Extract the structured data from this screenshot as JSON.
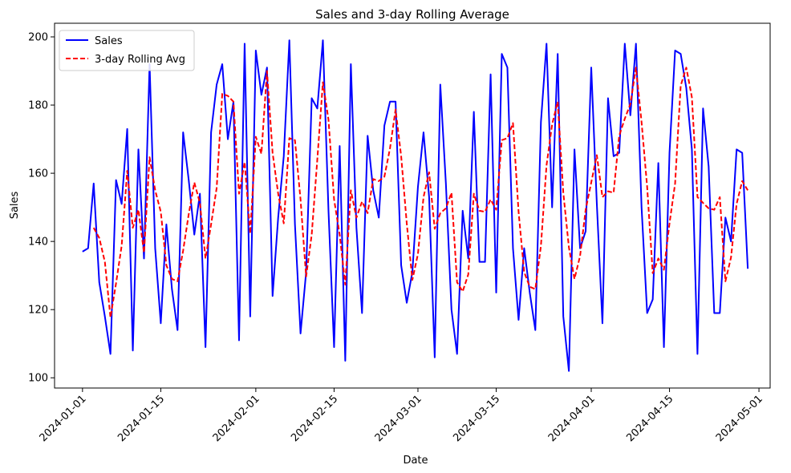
{
  "chart_data": {
    "type": "line",
    "title": "Sales and 3-day Rolling Average",
    "xlabel": "Date",
    "ylabel": "Sales",
    "x_start": "2024-01-01",
    "xlim": [
      "2023-12-27",
      "2024-05-03"
    ],
    "ylim": [
      97,
      204
    ],
    "grid": false,
    "legend_position": "top-left",
    "x_ticks": [
      "2024-01-01",
      "2024-01-15",
      "2024-02-01",
      "2024-02-15",
      "2024-03-01",
      "2024-03-15",
      "2024-04-01",
      "2024-04-15",
      "2024-05-01"
    ],
    "y_ticks": [
      100,
      120,
      140,
      160,
      180,
      200
    ],
    "series": [
      {
        "name": "Sales",
        "color": "#0000ff",
        "style": "solid",
        "values": [
          137,
          138,
          157,
          128,
          118,
          107,
          158,
          151,
          173,
          108,
          167,
          135,
          192,
          138,
          116,
          145,
          126,
          114,
          172,
          158,
          142,
          154,
          109,
          172,
          186,
          192,
          170,
          181,
          111,
          198,
          118,
          196,
          183,
          191,
          124,
          147,
          165,
          199,
          145,
          113,
          131,
          182,
          179,
          199,
          149,
          109,
          168,
          105,
          192,
          144,
          119,
          171,
          155,
          147,
          174,
          181,
          181,
          133,
          122,
          131,
          156,
          172,
          153,
          106,
          186,
          157,
          120,
          107,
          149,
          135,
          178,
          134,
          134,
          189,
          125,
          195,
          191,
          138,
          117,
          138,
          125,
          114,
          175,
          198,
          150,
          195,
          118,
          102,
          167,
          138,
          143,
          191,
          151,
          116,
          182,
          165,
          166,
          198,
          177,
          198,
          150,
          119,
          123,
          163,
          109,
          166,
          196,
          195,
          185,
          167,
          107,
          179,
          162,
          119,
          119,
          147,
          140,
          167,
          166,
          132
        ]
      },
      {
        "name": "3-day Rolling Avg",
        "color": "#ff0000",
        "style": "dashed",
        "start_date": "2024-01-03",
        "values": [
          144,
          141,
          134,
          117.7,
          127.7,
          138.7,
          160.7,
          144,
          149.3,
          136.7,
          164.7,
          155,
          148.7,
          133,
          129,
          128.3,
          137.3,
          148,
          157.3,
          151.3,
          135,
          145,
          155.7,
          183.3,
          182.7,
          181,
          154,
          163.3,
          142.3,
          170.7,
          165.7,
          190,
          166,
          154,
          145.3,
          170.3,
          169.7,
          152.3,
          129.7,
          142,
          164,
          186.7,
          175.7,
          152.3,
          142,
          127.3,
          155,
          147,
          151.7,
          148.3,
          158.3,
          157.7,
          159,
          167.3,
          178.7,
          165,
          145.3,
          128.7,
          136.3,
          153,
          160.3,
          143.7,
          148.3,
          149.7,
          154.3,
          128,
          125.3,
          130.3,
          154,
          149,
          148.7,
          152.3,
          149.3,
          169.7,
          170.3,
          174.7,
          148.7,
          131,
          126.7,
          126,
          138.7,
          162.3,
          174.3,
          181,
          154.3,
          138.3,
          129,
          135.7,
          149.3,
          157.3,
          165.3,
          153,
          154.7,
          154.3,
          171,
          176,
          180.3,
          191,
          175,
          156,
          130.7,
          135,
          131.7,
          145.3,
          157,
          185.7,
          191,
          182.3,
          153,
          151.3,
          149.7,
          149.3,
          153,
          128.3,
          135.3,
          151,
          157.7,
          155
        ]
      }
    ]
  }
}
